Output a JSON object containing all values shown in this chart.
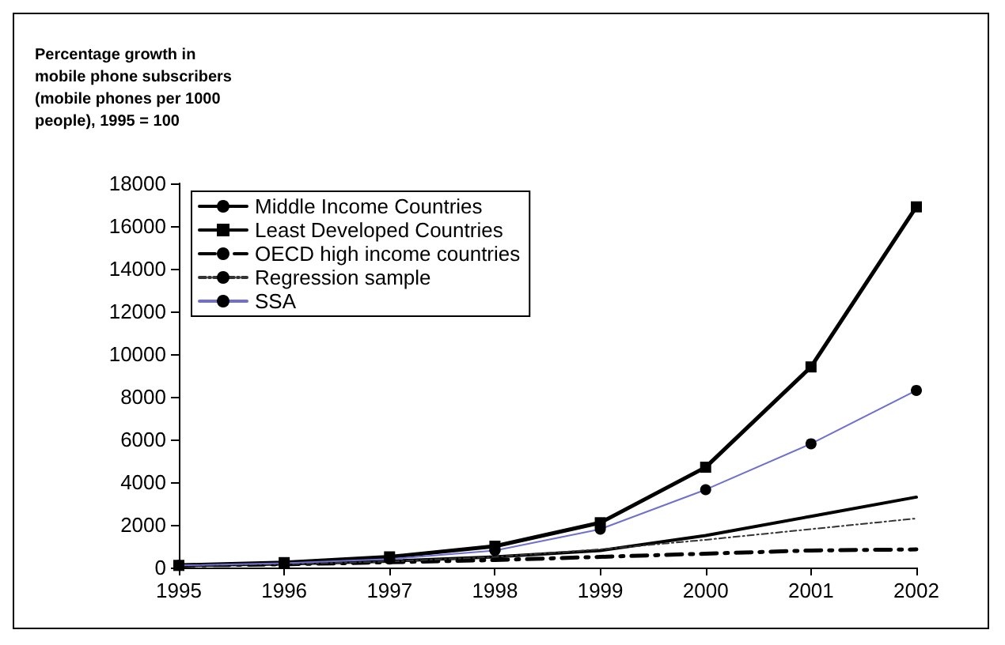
{
  "chart_data": {
    "type": "line",
    "ylabel": "Percentage growth in mobile phone subscribers (mobile phones per 1000 people), 1995 = 100",
    "categories": [
      "1995",
      "1996",
      "1997",
      "1998",
      "1999",
      "2000",
      "2001",
      "2002"
    ],
    "series": [
      {
        "name": "Middle Income Countries",
        "color": "#000000",
        "line_style": "solid",
        "marker": "none",
        "values": [
          100,
          170,
          300,
          500,
          800,
          1500,
          2400,
          3300
        ]
      },
      {
        "name": "Least Developed Countries",
        "color": "#000000",
        "line_style": "solid",
        "marker": "square",
        "values": [
          100,
          230,
          500,
          1000,
          2100,
          4700,
          9400,
          16900
        ]
      },
      {
        "name": "OECD high income countries",
        "color": "#000000",
        "line_style": "dashed",
        "marker": "none",
        "values": [
          100,
          150,
          250,
          350,
          500,
          650,
          800,
          850
        ]
      },
      {
        "name": "Regression sample",
        "color": "#333333",
        "line_style": "dotted",
        "marker": "none",
        "values": [
          100,
          160,
          280,
          500,
          850,
          1300,
          1800,
          2300
        ]
      },
      {
        "name": "SSA",
        "color": "#6f6fd0",
        "line_style": "solid",
        "marker": "circle",
        "values": [
          100,
          200,
          400,
          800,
          1800,
          3650,
          5800,
          8300
        ]
      }
    ],
    "ylim": [
      0,
      18000
    ],
    "yticks": [
      0,
      2000,
      4000,
      6000,
      8000,
      10000,
      12000,
      14000,
      16000,
      18000
    ],
    "grid": false,
    "legend": "top left"
  }
}
